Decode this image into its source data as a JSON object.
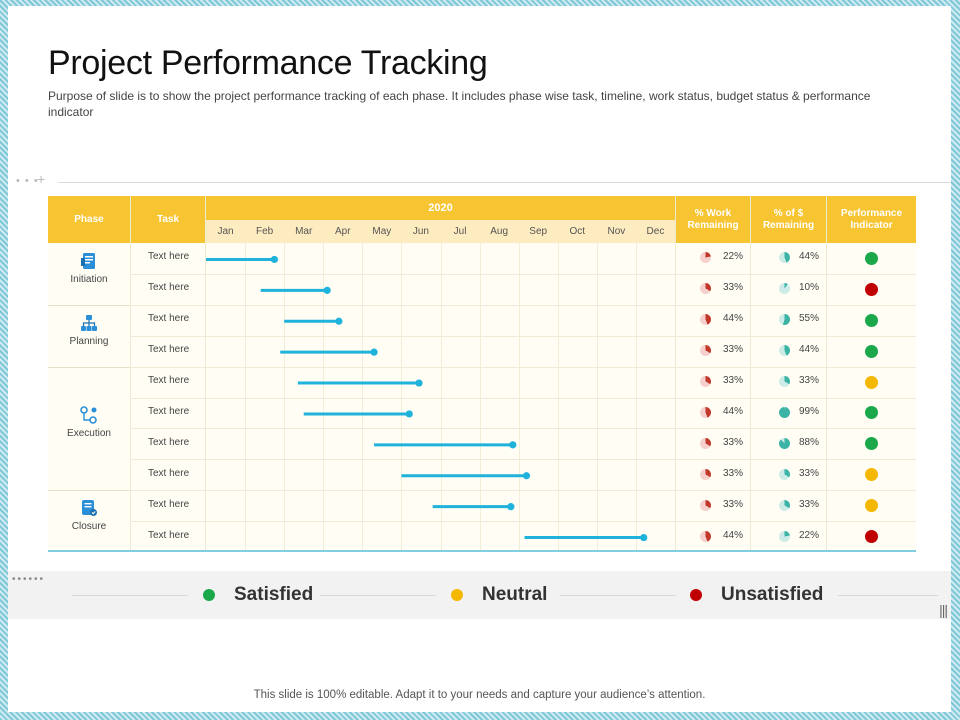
{
  "title": "Project Performance Tracking",
  "subtitle": "Purpose of slide is to show the project performance tracking of each phase. It includes phase wise task, timeline, work status, budget status & performance indicator",
  "table": {
    "headers": {
      "phase": "Phase",
      "task": "Task",
      "year": "2020",
      "work": "% Work Remaining",
      "budget": "% of $ Remaining",
      "indicator": "Performance Indicator"
    },
    "months": [
      "Jan",
      "Feb",
      "Mar",
      "Apr",
      "May",
      "Jun",
      "Jul",
      "Aug",
      "Sep",
      "Oct",
      "Nov",
      "Dec"
    ],
    "phases": [
      {
        "label": "Initiation",
        "icon": "document-icon"
      },
      {
        "label": "Planning",
        "icon": "org-chart-icon"
      },
      {
        "label": "Execution",
        "icon": "workflow-icon"
      },
      {
        "label": "Closure",
        "icon": "checklist-icon"
      }
    ],
    "rows": [
      {
        "task": "Text here",
        "work": "22%",
        "budget": "44%",
        "indicator": "Satisfied"
      },
      {
        "task": "Text here",
        "work": "33%",
        "budget": "10%",
        "indicator": "Unsatisfied"
      },
      {
        "task": "Text here",
        "work": "44%",
        "budget": "55%",
        "indicator": "Satisfied"
      },
      {
        "task": "Text here",
        "work": "33%",
        "budget": "44%",
        "indicator": "Satisfied"
      },
      {
        "task": "Text here",
        "work": "33%",
        "budget": "33%",
        "indicator": "Neutral"
      },
      {
        "task": "Text here",
        "work": "44%",
        "budget": "99%",
        "indicator": "Satisfied"
      },
      {
        "task": "Text here",
        "work": "33%",
        "budget": "88%",
        "indicator": "Satisfied"
      },
      {
        "task": "Text here",
        "work": "33%",
        "budget": "33%",
        "indicator": "Neutral"
      },
      {
        "task": "Text here",
        "work": "33%",
        "budget": "33%",
        "indicator": "Neutral"
      },
      {
        "task": "Text here",
        "work": "44%",
        "budget": "22%",
        "indicator": "Unsatisfied"
      }
    ]
  },
  "chart_data": {
    "type": "gantt",
    "year": "2020",
    "tasks": [
      {
        "start_month": 1.0,
        "end_month": 2.75
      },
      {
        "start_month": 2.4,
        "end_month": 4.1
      },
      {
        "start_month": 3.0,
        "end_month": 4.4
      },
      {
        "start_month": 2.9,
        "end_month": 5.3
      },
      {
        "start_month": 3.35,
        "end_month": 6.45
      },
      {
        "start_month": 3.5,
        "end_month": 6.2
      },
      {
        "start_month": 5.3,
        "end_month": 8.85
      },
      {
        "start_month": 6.0,
        "end_month": 9.2
      },
      {
        "start_month": 6.8,
        "end_month": 8.8
      },
      {
        "start_month": 9.15,
        "end_month": 12.2
      }
    ]
  },
  "legend": {
    "items": [
      {
        "label": "Satisfied",
        "color": "#1aa84a"
      },
      {
        "label": "Neutral",
        "color": "#f5b800"
      },
      {
        "label": "Unsatisfied",
        "color": "#c00000"
      }
    ]
  },
  "colors": {
    "header": "#f7c432",
    "bar": "#1fb3dc",
    "work_pie": "#c0392b",
    "budget_pie": "#3bb3a5"
  },
  "footer": "This slide is 100% editable. Adapt it to your needs and capture your audience’s attention."
}
